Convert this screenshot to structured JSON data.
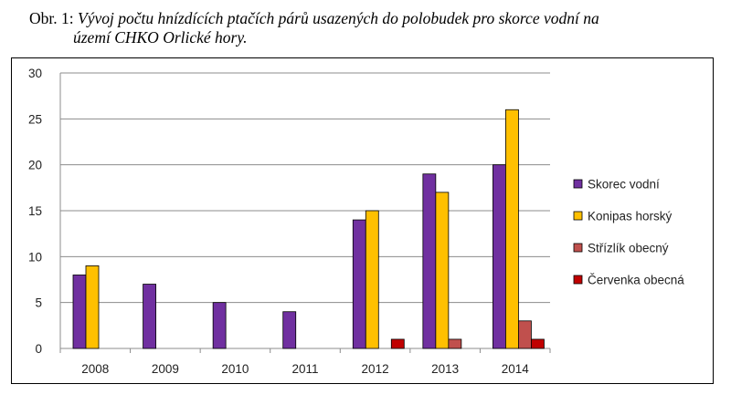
{
  "caption": {
    "prefix": "Obr. 1: ",
    "line1": "Vývoj počtu hnízdících ptačích párů usazených do polobudek pro skorce vodní na",
    "line2": "území CHKO Orlické hory."
  },
  "chart_data": {
    "type": "bar",
    "categories": [
      "2008",
      "2009",
      "2010",
      "2011",
      "2012",
      "2013",
      "2014"
    ],
    "series": [
      {
        "name": "Skorec vodní",
        "color": "#7030A0",
        "values": [
          8,
          7,
          5,
          4,
          14,
          19,
          20
        ]
      },
      {
        "name": "Konipas horský",
        "color": "#FFC000",
        "values": [
          9,
          0,
          0,
          0,
          15,
          17,
          26
        ]
      },
      {
        "name": "Střízlík obecný",
        "color": "#C0504D",
        "values": [
          0,
          0,
          0,
          0,
          0,
          1,
          3
        ]
      },
      {
        "name": "Červenka obecná",
        "color": "#C00000",
        "values": [
          0,
          0,
          0,
          0,
          1,
          0,
          1
        ]
      }
    ],
    "ylim": [
      0,
      30
    ],
    "yticks": [
      "0",
      "5",
      "10",
      "15",
      "20",
      "25",
      "30"
    ],
    "grid": true,
    "legend": "right"
  }
}
